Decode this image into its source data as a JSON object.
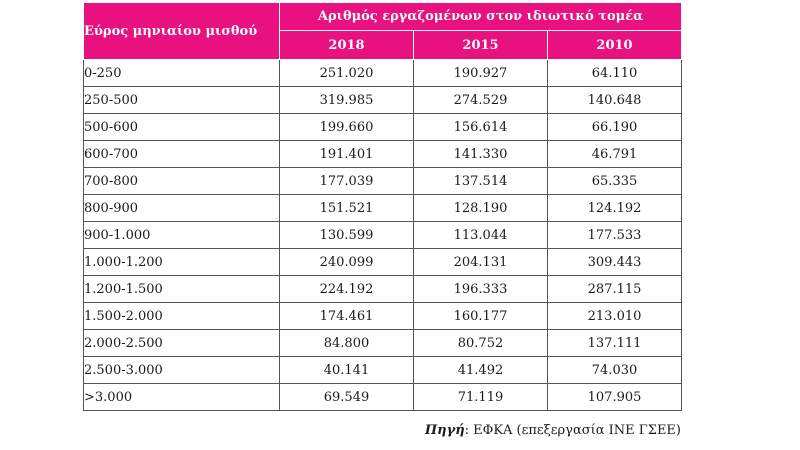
{
  "table": {
    "range_header": "Εύρος μηνιαίου μισθού",
    "group_header": "Αριθμός εργαζομένων στον ιδιωτικό τομέα",
    "years": [
      "2018",
      "2015",
      "2010"
    ],
    "rows": [
      {
        "range": "0-250",
        "values": [
          "251.020",
          "190.927",
          "64.110"
        ]
      },
      {
        "range": "250-500",
        "values": [
          "319.985",
          "274.529",
          "140.648"
        ]
      },
      {
        "range": "500-600",
        "values": [
          "199.660",
          "156.614",
          "66.190"
        ]
      },
      {
        "range": "600-700",
        "values": [
          "191.401",
          "141.330",
          "46.791"
        ]
      },
      {
        "range": "700-800",
        "values": [
          "177.039",
          "137.514",
          "65.335"
        ]
      },
      {
        "range": "800-900",
        "values": [
          "151.521",
          "128.190",
          "124.192"
        ]
      },
      {
        "range": "900-1.000",
        "values": [
          "130.599",
          "113.044",
          "177.533"
        ]
      },
      {
        "range": "1.000-1.200",
        "values": [
          "240.099",
          "204.131",
          "309.443"
        ]
      },
      {
        "range": "1.200-1.500",
        "values": [
          "224.192",
          "196.333",
          "287.115"
        ]
      },
      {
        "range": "1.500-2.000",
        "values": [
          "174.461",
          "160.177",
          "213.010"
        ]
      },
      {
        "range": "2.000-2.500",
        "values": [
          "84.800",
          "80.752",
          "137.111"
        ]
      },
      {
        "range": "2.500-3.000",
        "values": [
          "40.141",
          "41.492",
          "74.030"
        ]
      },
      {
        "range": ">3.000",
        "values": [
          "69.549",
          "71.119",
          "107.905"
        ]
      }
    ]
  },
  "source": {
    "label": "Πηγή",
    "text": ": ΕΦΚΑ (επεξεργασία ΙΝΕ ΓΣΕΕ)"
  },
  "colors": {
    "header_bg": "#e8117f",
    "header_text": "#ffffff",
    "border": "#555555"
  }
}
